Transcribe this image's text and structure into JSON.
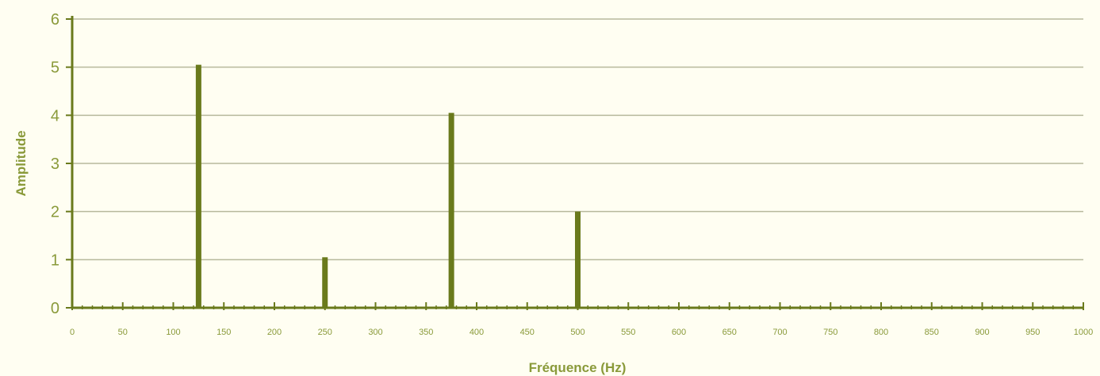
{
  "chart_data": {
    "type": "bar",
    "title": "",
    "xlabel": "Fréquence (Hz)",
    "ylabel": "Amplitude",
    "xlim": [
      0,
      1000
    ],
    "ylim": [
      0,
      6
    ],
    "x_ticks": [
      0,
      50,
      100,
      150,
      200,
      250,
      300,
      350,
      400,
      450,
      500,
      550,
      600,
      650,
      700,
      750,
      800,
      850,
      900,
      950,
      1000
    ],
    "y_ticks": [
      0,
      1,
      2,
      3,
      4,
      5,
      6
    ],
    "minor_x_step": 10,
    "x": [
      125,
      250,
      375,
      500
    ],
    "values": [
      5.05,
      1.05,
      4.05,
      2.0
    ],
    "grid": "horizontal",
    "legend": "none",
    "colors": {
      "background": "#fffef2",
      "bar": "#6a7a1c",
      "axis": "#6a7a1c",
      "grid": "#b7b99c",
      "text": "#8a9a3a"
    }
  }
}
